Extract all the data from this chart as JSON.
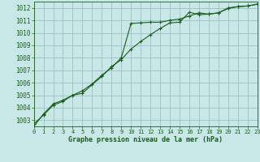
{
  "title": "Graphe pression niveau de la mer (hPa)",
  "background_color": "#c8e8e8",
  "grid_color": "#a0c8c8",
  "line_color": "#1a5c1a",
  "xlim": [
    0,
    23
  ],
  "ylim": [
    1002.5,
    1012.5
  ],
  "yticks": [
    1003,
    1004,
    1005,
    1006,
    1007,
    1008,
    1009,
    1010,
    1011,
    1012
  ],
  "xticks": [
    0,
    1,
    2,
    3,
    4,
    5,
    6,
    7,
    8,
    9,
    10,
    11,
    12,
    13,
    14,
    15,
    16,
    17,
    18,
    19,
    20,
    21,
    22,
    23
  ],
  "series1_x": [
    0,
    1,
    2,
    3,
    4,
    5,
    6,
    7,
    8,
    9,
    10,
    11,
    12,
    13,
    14,
    15,
    16,
    17,
    18,
    19,
    20,
    21,
    22,
    23
  ],
  "series1_y": [
    1002.7,
    1003.4,
    1004.2,
    1004.5,
    1005.0,
    1005.35,
    1005.9,
    1006.6,
    1007.2,
    1008.0,
    1010.75,
    1010.8,
    1010.85,
    1010.85,
    1011.0,
    1011.1,
    1011.35,
    1011.6,
    1011.5,
    1011.6,
    1011.95,
    1012.1,
    1012.15,
    1012.3
  ],
  "series2_x": [
    0,
    1,
    2,
    3,
    4,
    5,
    6,
    7,
    8,
    9,
    10,
    11,
    12,
    13,
    14,
    15,
    16,
    17,
    18,
    19,
    20,
    21,
    22,
    23
  ],
  "series2_y": [
    1002.5,
    1003.5,
    1004.3,
    1004.6,
    1005.0,
    1005.15,
    1005.85,
    1006.5,
    1007.3,
    1007.85,
    1008.7,
    1009.3,
    1009.85,
    1010.35,
    1010.8,
    1010.85,
    1011.65,
    1011.45,
    1011.5,
    1011.6,
    1012.0,
    1012.1,
    1012.15,
    1012.3
  ]
}
